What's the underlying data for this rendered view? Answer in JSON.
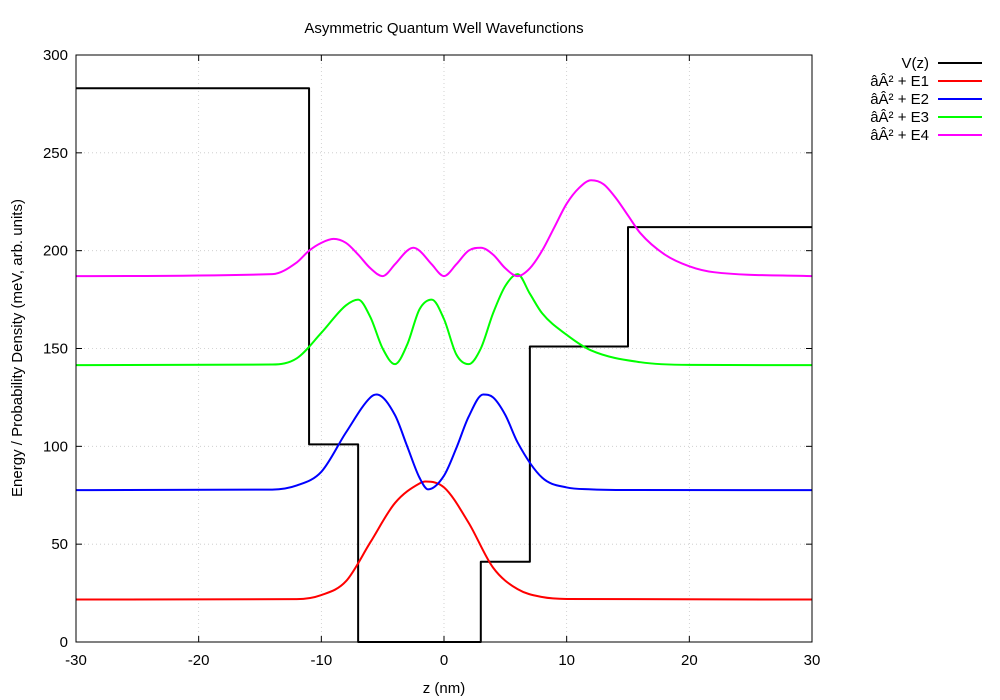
{
  "chart_data": {
    "type": "line",
    "title": "Asymmetric Quantum Well Wavefunctions",
    "xlabel": "z (nm)",
    "ylabel": "Energy / Probability Density (meV, arb. units)",
    "xlim": [
      -30,
      30
    ],
    "ylim": [
      0,
      300
    ],
    "xticks": [
      -30,
      -20,
      -10,
      0,
      10,
      20,
      30
    ],
    "yticks": [
      0,
      50,
      100,
      150,
      200,
      250,
      300
    ],
    "grid": true,
    "legend_position": "top-right, outside plot",
    "series": [
      {
        "name": "V(z)",
        "color": "#000000",
        "x": [
          -30,
          -11,
          -11,
          -7,
          -7,
          3,
          3,
          7,
          7,
          15,
          15,
          30
        ],
        "y": [
          283,
          283,
          101,
          101,
          0,
          0,
          41,
          41,
          151,
          151,
          212,
          212
        ]
      },
      {
        "name": "âÂ² + E1",
        "color": "#ff0000",
        "x": [
          -30,
          -12,
          -10,
          -8,
          -6,
          -4,
          -2,
          -1.5,
          0,
          2,
          4,
          6,
          8,
          10,
          30
        ],
        "y": [
          21.7,
          21.9,
          24,
          31,
          51,
          71,
          81,
          82,
          79,
          61,
          38,
          27,
          23,
          22,
          21.7
        ]
      },
      {
        "name": "âÂ² + E2",
        "color": "#0000ff",
        "x": [
          -30,
          -14,
          -12,
          -10,
          -8,
          -6,
          -5.5,
          -4,
          -3,
          -2,
          -1.3,
          0,
          1,
          2,
          3.2,
          4,
          5,
          6,
          8,
          10,
          12,
          14,
          30
        ],
        "y": [
          77.6,
          77.9,
          80,
          87,
          107,
          125,
          126.5,
          116,
          100,
          84,
          78,
          85,
          99,
          115,
          126.5,
          125,
          116,
          102,
          84,
          79,
          78,
          77.7,
          77.6
        ]
      },
      {
        "name": "âÂ² + E3",
        "color": "#00ff00",
        "x": [
          -30,
          -14,
          -12,
          -10,
          -8,
          -7,
          -6,
          -5,
          -4,
          -3,
          -2,
          -1,
          0,
          1,
          2,
          3,
          4,
          5,
          6,
          7,
          8,
          10,
          12,
          16,
          20,
          30
        ],
        "y": [
          141.5,
          141.8,
          145,
          158,
          172,
          175,
          166,
          150,
          142,
          152,
          170,
          175,
          165,
          147,
          142,
          150,
          168,
          182,
          188,
          178,
          168,
          157,
          149,
          143,
          141.6,
          141.5
        ]
      },
      {
        "name": "âÂ² + E4",
        "color": "#ff00ff",
        "x": [
          -30,
          -14,
          -12,
          -11,
          -10,
          -9,
          -8,
          -7,
          -6,
          -5,
          -4,
          -3,
          -2.5,
          -2,
          -1,
          0,
          1,
          2,
          3,
          4,
          5,
          6,
          7,
          8,
          9,
          10,
          11,
          12,
          13,
          14,
          15,
          16,
          18,
          20,
          22,
          30
        ],
        "y": [
          187,
          188,
          194,
          200,
          204,
          206,
          204,
          198,
          191,
          187,
          193,
          200,
          201.5,
          200,
          193,
          187,
          193,
          200,
          201.5,
          198,
          191,
          187,
          191,
          200,
          212,
          224,
          232,
          236,
          234,
          227,
          218,
          209,
          198,
          192,
          189,
          187
        ]
      }
    ]
  }
}
